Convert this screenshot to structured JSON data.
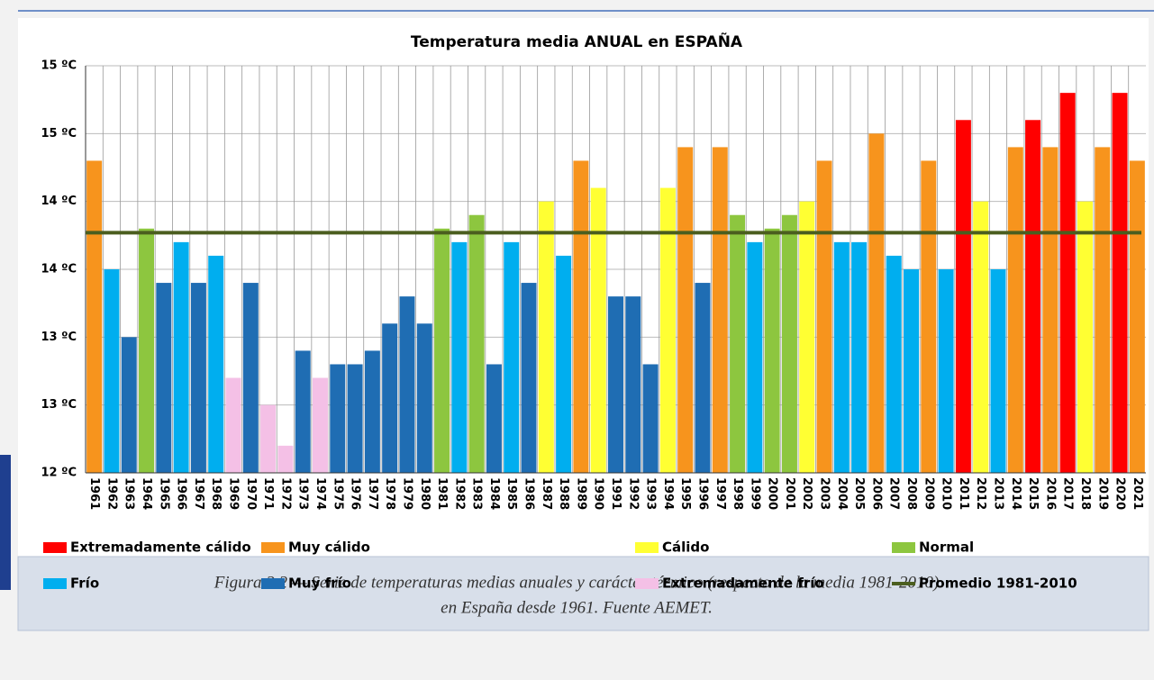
{
  "chart_data": {
    "type": "bar",
    "title": "Temperatura media ANUAL en ESPAÑA",
    "categories": [
      "1961",
      "1962",
      "1963",
      "1964",
      "1965",
      "1966",
      "1967",
      "1968",
      "1969",
      "1970",
      "1971",
      "1972",
      "1973",
      "1974",
      "1975",
      "1976",
      "1977",
      "1978",
      "1979",
      "1980",
      "1981",
      "1982",
      "1983",
      "1984",
      "1985",
      "1986",
      "1987",
      "1988",
      "1989",
      "1990",
      "1991",
      "1992",
      "1993",
      "1994",
      "1995",
      "1996",
      "1997",
      "1998",
      "1999",
      "2000",
      "2001",
      "2002",
      "2003",
      "2004",
      "2005",
      "2006",
      "2007",
      "2008",
      "2009",
      "2010",
      "2011",
      "2012",
      "2013",
      "2014",
      "2015",
      "2016",
      "2017",
      "2018",
      "2019",
      "2020",
      "2021"
    ],
    "values": [
      14.3,
      13.5,
      13.0,
      13.8,
      13.4,
      13.7,
      13.4,
      13.6,
      12.7,
      13.4,
      12.5,
      12.2,
      12.9,
      12.7,
      12.8,
      12.8,
      12.9,
      13.1,
      13.3,
      13.1,
      13.8,
      13.7,
      13.9,
      12.8,
      13.7,
      13.4,
      14.0,
      13.6,
      14.3,
      14.1,
      13.3,
      13.3,
      12.8,
      14.1,
      14.4,
      13.4,
      14.4,
      13.9,
      13.7,
      13.8,
      13.9,
      14.0,
      14.3,
      13.7,
      13.7,
      14.5,
      13.6,
      13.5,
      14.3,
      13.5,
      14.6,
      14.0,
      13.5,
      14.4,
      14.6,
      14.4,
      14.8,
      14.0,
      14.4,
      14.8,
      14.3
    ],
    "bar_colors": [
      "#f7941d",
      "#00aeef",
      "#1f6db3",
      "#8dc63f",
      "#1f6db3",
      "#00aeef",
      "#1f6db3",
      "#00aeef",
      "#f4c0e6",
      "#1f6db3",
      "#f4c0e6",
      "#f4c0e6",
      "#1f6db3",
      "#f4c0e6",
      "#1f6db3",
      "#1f6db3",
      "#1f6db3",
      "#1f6db3",
      "#1f6db3",
      "#1f6db3",
      "#8dc63f",
      "#00aeef",
      "#8dc63f",
      "#1f6db3",
      "#00aeef",
      "#1f6db3",
      "#ffff33",
      "#00aeef",
      "#f7941d",
      "#ffff33",
      "#1f6db3",
      "#1f6db3",
      "#1f6db3",
      "#ffff33",
      "#f7941d",
      "#1f6db3",
      "#f7941d",
      "#8dc63f",
      "#00aeef",
      "#8dc63f",
      "#8dc63f",
      "#ffff33",
      "#f7941d",
      "#00aeef",
      "#00aeef",
      "#f7941d",
      "#00aeef",
      "#00aeef",
      "#f7941d",
      "#00aeef",
      "#ff0000",
      "#ffff33",
      "#00aeef",
      "#f7941d",
      "#ff0000",
      "#f7941d",
      "#ff0000",
      "#ffff33",
      "#f7941d",
      "#ff0000",
      "#f7941d"
    ],
    "average": 13.77,
    "average_color": "#4b5e1f",
    "ylim": [
      12,
      15
    ],
    "yticks": [
      {
        "value": 12,
        "label": "12 ºC"
      },
      {
        "value": 12.5,
        "label": "13 ºC"
      },
      {
        "value": 13,
        "label": "13 ºC"
      },
      {
        "value": 13.5,
        "label": "14 ºC"
      },
      {
        "value": 14,
        "label": "14 ºC"
      },
      {
        "value": 14.5,
        "label": "15 ºC"
      },
      {
        "value": 15,
        "label": "15 ºC"
      }
    ],
    "grid": true,
    "legend": [
      {
        "name": "Extremadamente cálido",
        "color": "#ff0000"
      },
      {
        "name": "Muy cálido",
        "color": "#f7941d"
      },
      {
        "name": "Cálido",
        "color": "#ffff33"
      },
      {
        "name": "Normal",
        "color": "#8dc63f"
      },
      {
        "name": "Frío",
        "color": "#00aeef"
      },
      {
        "name": "Muy frío",
        "color": "#1f6db3"
      },
      {
        "name": "Extremadamente frío",
        "color": "#f4c0e6"
      },
      {
        "name": "Promedio 1981-2010",
        "color": "#4b5e1f",
        "line": true
      }
    ],
    "caption": [
      "Figura 2.2 — Serie de temperaturas medias anuales y carácter térmico (respecto de la media 1981-2010)",
      "en España desde 1961. Fuente AEMET."
    ]
  }
}
